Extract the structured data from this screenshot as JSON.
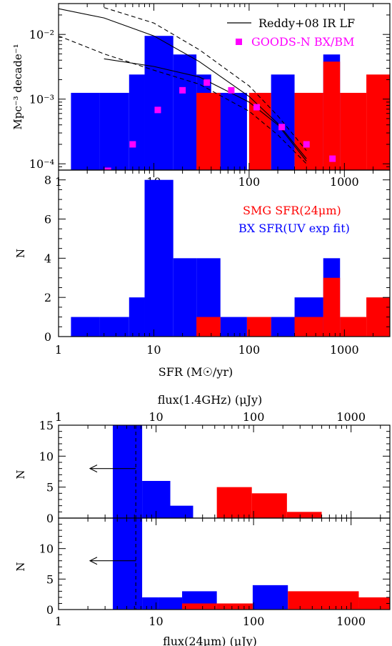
{
  "colors": {
    "blue": "#0000ff",
    "red": "#ff0000",
    "magenta": "#ff00ff",
    "black": "#000000"
  },
  "chart_data": [
    {
      "type": "bar",
      "scale": "log-log",
      "xlim": [
        1,
        3000
      ],
      "ylim": [
        8e-05,
        0.03
      ],
      "ylabel": "Mpc⁻³ decade⁻¹",
      "y_tick_labels": [
        "10⁻²",
        "10⁻³",
        "10⁻⁴"
      ],
      "x_tick_labels": [
        "1",
        "10",
        "100",
        "1000"
      ],
      "series": [
        {
          "name": "blue",
          "color": "blue",
          "bins": [
            [
              1.35,
              2.7,
              0.00125
            ],
            [
              2.7,
              5.5,
              0.00125
            ],
            [
              5.5,
              8.0,
              0.0024
            ],
            [
              8.0,
              16.0,
              0.0095
            ],
            [
              16.0,
              28.0,
              0.0049
            ],
            [
              28.0,
              40.0,
              0.0024
            ],
            [
              40.0,
              95.0,
              0.00125
            ],
            [
              170.0,
              300.0,
              0.0024
            ],
            [
              600.0,
              900.0,
              0.0049
            ]
          ]
        },
        {
          "name": "red",
          "color": "red",
          "bins": [
            [
              28.0,
              50.0,
              0.00125
            ],
            [
              100.0,
              170.0,
              0.00125
            ],
            [
              300.0,
              600.0,
              0.00125
            ],
            [
              600.0,
              900.0,
              0.0038
            ],
            [
              900.0,
              1700.0,
              0.00125
            ],
            [
              1700.0,
              3000.0,
              0.0024
            ]
          ]
        },
        {
          "name": "GOODS-N BX/BM",
          "color": "magenta",
          "points": [
            [
              3.3,
              7.8e-05
            ],
            [
              6.0,
              0.0002
            ],
            [
              11.0,
              0.00068
            ],
            [
              20.0,
              0.00137
            ],
            [
              36.0,
              0.0018
            ],
            [
              65.0,
              0.00137
            ],
            [
              120.0,
              0.00075
            ],
            [
              220.0,
              0.00037
            ],
            [
              400.0,
              0.0002
            ],
            [
              750.0,
              0.00012
            ]
          ]
        }
      ],
      "lines": [
        {
          "name": "Reddy+08 IR LF",
          "style": "solid",
          "points": [
            [
              1,
              0.025
            ],
            [
              3,
              0.018
            ],
            [
              10,
              0.0095
            ],
            [
              30,
              0.0038
            ],
            [
              100,
              0.0011
            ],
            [
              200,
              0.00042
            ],
            [
              400,
              0.00012
            ]
          ]
        },
        {
          "style": "solid",
          "points": [
            [
              3,
              0.0042
            ],
            [
              10,
              0.0032
            ],
            [
              30,
              0.0022
            ],
            [
              100,
              0.0009
            ],
            [
              200,
              0.0004
            ],
            [
              400,
              0.00011
            ]
          ]
        },
        {
          "style": "dashed",
          "points": [
            [
              3,
              0.026
            ],
            [
              10,
              0.015
            ],
            [
              30,
              0.0058
            ],
            [
              100,
              0.0016
            ],
            [
              200,
              0.00055
            ],
            [
              400,
              0.00016
            ]
          ]
        },
        {
          "style": "dashed",
          "points": [
            [
              1,
              0.0095
            ],
            [
              3,
              0.005
            ],
            [
              10,
              0.0028
            ],
            [
              30,
              0.0017
            ],
            [
              100,
              0.00065
            ],
            [
              200,
              0.00028
            ],
            [
              400,
              0.0001
            ]
          ]
        }
      ],
      "legend": [
        {
          "label": "Reddy+08 IR LF",
          "marker": "line"
        },
        {
          "label": "GOODS-N BX/BM",
          "marker": "square",
          "color": "magenta"
        }
      ]
    },
    {
      "type": "bar",
      "scale": "log-x",
      "xlim": [
        1,
        3000
      ],
      "ylim": [
        0,
        8.5
      ],
      "xlabel": "SFR (M☉/yr)",
      "ylabel": "N",
      "x_tick_labels": [
        "1",
        "10",
        "100",
        "1000"
      ],
      "y_tick_labels": [
        "0",
        "2",
        "4",
        "6",
        "8"
      ],
      "series": [
        {
          "name": "BX SFR(UV exp fit)",
          "color": "blue",
          "bins": [
            [
              1.35,
              2.7,
              1
            ],
            [
              2.7,
              5.5,
              1
            ],
            [
              5.5,
              8.0,
              2
            ],
            [
              8.0,
              16.0,
              8
            ],
            [
              16.0,
              28.0,
              4
            ],
            [
              28.0,
              50.0,
              4
            ],
            [
              50.0,
              95.0,
              1
            ],
            [
              170.0,
              300.0,
              1
            ],
            [
              300.0,
              600.0,
              2
            ],
            [
              600.0,
              900.0,
              4
            ]
          ]
        },
        {
          "name": "SMG SFR(24μm)",
          "color": "red",
          "bins": [
            [
              28.0,
              50.0,
              1
            ],
            [
              95.0,
              170.0,
              1
            ],
            [
              300.0,
              600.0,
              1
            ],
            [
              600.0,
              900.0,
              3
            ],
            [
              900.0,
              1700.0,
              1
            ],
            [
              1700.0,
              3000.0,
              2
            ]
          ]
        }
      ],
      "legend": [
        {
          "label": "SMG SFR(24μm)",
          "color": "red"
        },
        {
          "label": "BX SFR(UV exp fit)",
          "color": "blue"
        }
      ]
    },
    {
      "type": "bar",
      "scale": "log-x",
      "xlim": [
        1,
        2500
      ],
      "ylim": [
        0,
        15
      ],
      "xlabel": "flux(1.4GHz) (μJy)",
      "ylabel": "N",
      "x_tick_labels": [
        "1",
        "10",
        "100",
        "1000"
      ],
      "y_tick_labels": [
        "0",
        "5",
        "10",
        "15"
      ],
      "series": [
        {
          "name": "blue",
          "color": "blue",
          "bins": [
            [
              3.6,
              7.2,
              15
            ],
            [
              7.2,
              14.0,
              6
            ],
            [
              14.0,
              24.0,
              2
            ]
          ]
        },
        {
          "name": "red",
          "color": "red",
          "bins": [
            [
              42.0,
              96.0,
              5
            ],
            [
              96.0,
              220.0,
              4
            ],
            [
              220.0,
              500.0,
              1
            ]
          ]
        }
      ],
      "vline": 6.2,
      "arrow": {
        "from": 6.2,
        "to": 2.1,
        "y": 8
      }
    },
    {
      "type": "bar",
      "scale": "log-x",
      "xlim": [
        1,
        2500
      ],
      "ylim": [
        0,
        15
      ],
      "xlabel": "flux(24μm) (μJy)",
      "ylabel": "N",
      "x_tick_labels": [
        "1",
        "10",
        "100",
        "1000"
      ],
      "y_tick_labels": [
        "0",
        "5",
        "10"
      ],
      "series": [
        {
          "name": "blue",
          "color": "blue",
          "bins": [
            [
              3.6,
              7.2,
              15
            ],
            [
              7.2,
              10.5,
              2
            ],
            [
              10.5,
              18.5,
              2
            ],
            [
              18.5,
              42.0,
              3
            ],
            [
              98.0,
              225.0,
              4
            ]
          ]
        },
        {
          "name": "red",
          "color": "red",
          "bins": [
            [
              18.5,
              42.0,
              1
            ],
            [
              42.0,
              98.0,
              1
            ],
            [
              225.0,
              1200.0,
              3
            ],
            [
              1200.0,
              2500.0,
              2
            ]
          ]
        }
      ],
      "vline": 6.2,
      "arrow": {
        "from": 6.2,
        "to": 2.1,
        "y": 8
      }
    }
  ]
}
